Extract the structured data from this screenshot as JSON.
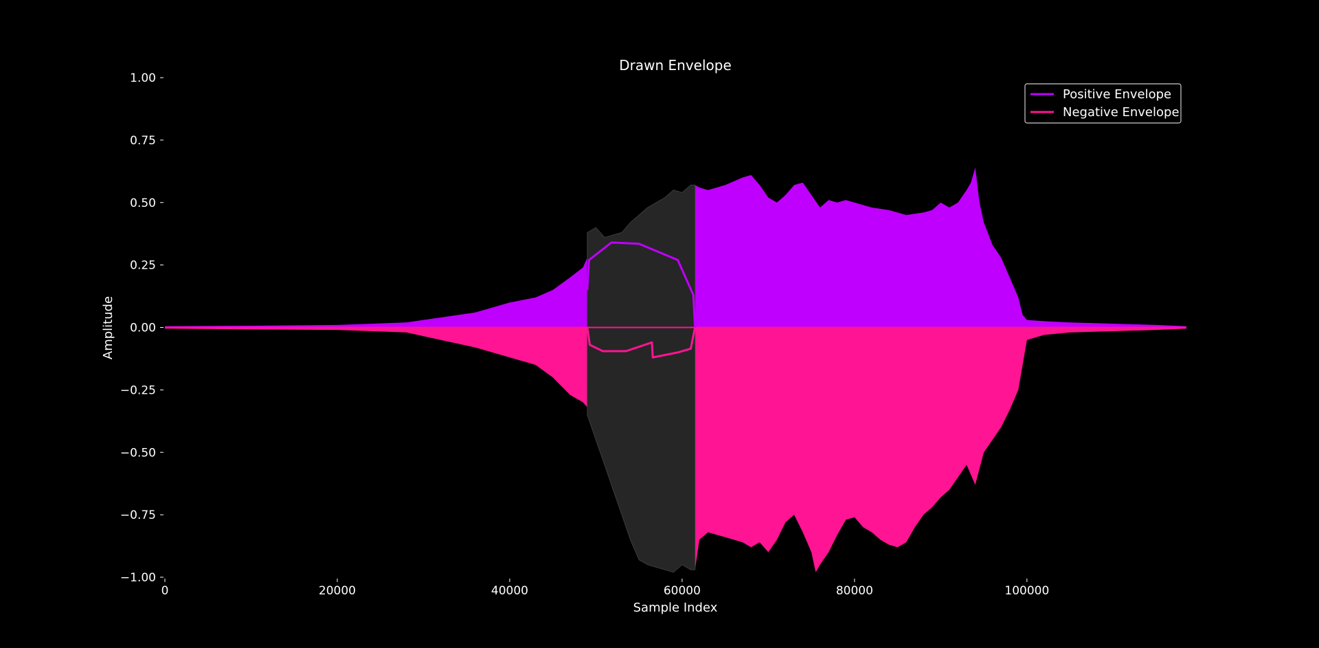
{
  "chart_data": {
    "type": "area",
    "title": "Drawn Envelope",
    "xlabel": "Sample Index",
    "ylabel": "Amplitude",
    "xlim": [
      0,
      118500
    ],
    "ylim": [
      -1.0,
      1.0
    ],
    "xticks": [
      0,
      20000,
      40000,
      60000,
      80000,
      100000
    ],
    "xtick_labels": [
      "0",
      "20000",
      "40000",
      "60000",
      "80000",
      "100000"
    ],
    "yticks": [
      1.0,
      0.75,
      0.5,
      0.25,
      0.0,
      -0.25,
      -0.5,
      -0.75,
      -1.0
    ],
    "ytick_labels": [
      "1.00",
      "0.75",
      "0.50",
      "0.25",
      "0.00",
      "−0.25",
      "−0.50",
      "−0.75",
      "−1.00"
    ],
    "grid": false,
    "legend_position": "top-right",
    "colors": {
      "background": "#000000",
      "positive": "#bf00ff",
      "negative": "#ff1493",
      "selection": "#262626",
      "selection_waveform": "#3c3c3c",
      "text": "#ffffff"
    },
    "selection_region": [
      49000,
      61500
    ],
    "positive_fill": {
      "x": [
        0,
        10000,
        20000,
        28000,
        32000,
        36000,
        40000,
        43000,
        45000,
        47000,
        48500,
        49000,
        61500,
        62000,
        63000,
        65000,
        67000,
        68000,
        69000,
        70000,
        71000,
        72000,
        73000,
        74000,
        75000,
        76000,
        77000,
        78000,
        79000,
        80000,
        82000,
        84000,
        86000,
        88000,
        89000,
        90000,
        91000,
        92000,
        93000,
        93500,
        94000,
        94500,
        95000,
        96000,
        97000,
        98000,
        99000,
        99500,
        100000,
        102000,
        105000,
        110000,
        115000,
        118500
      ],
      "y": [
        0.005,
        0.007,
        0.01,
        0.02,
        0.04,
        0.06,
        0.1,
        0.12,
        0.15,
        0.2,
        0.24,
        0.28,
        0.57,
        0.56,
        0.55,
        0.57,
        0.6,
        0.61,
        0.57,
        0.52,
        0.5,
        0.53,
        0.57,
        0.58,
        0.53,
        0.48,
        0.51,
        0.5,
        0.51,
        0.5,
        0.48,
        0.47,
        0.45,
        0.46,
        0.47,
        0.5,
        0.48,
        0.5,
        0.55,
        0.58,
        0.64,
        0.5,
        0.42,
        0.33,
        0.28,
        0.2,
        0.12,
        0.05,
        0.03,
        0.025,
        0.02,
        0.015,
        0.01,
        0.005
      ]
    },
    "negative_fill": {
      "x": [
        0,
        10000,
        20000,
        28000,
        32000,
        36000,
        40000,
        43000,
        45000,
        47000,
        48500,
        49000,
        61500,
        62000,
        63000,
        65000,
        67000,
        68000,
        69000,
        70000,
        71000,
        72000,
        73000,
        74000,
        75000,
        75500,
        76000,
        77000,
        78000,
        79000,
        80000,
        81000,
        82000,
        83000,
        84000,
        85000,
        86000,
        87000,
        88000,
        89000,
        90000,
        91000,
        92000,
        93000,
        94000,
        95000,
        96000,
        97000,
        98000,
        99000,
        100000,
        102000,
        105000,
        110000,
        115000,
        118500
      ],
      "y": [
        -0.005,
        -0.008,
        -0.01,
        -0.02,
        -0.05,
        -0.08,
        -0.12,
        -0.15,
        -0.2,
        -0.27,
        -0.3,
        -0.32,
        -0.97,
        -0.85,
        -0.82,
        -0.84,
        -0.86,
        -0.88,
        -0.86,
        -0.9,
        -0.85,
        -0.78,
        -0.75,
        -0.82,
        -0.9,
        -0.98,
        -0.95,
        -0.9,
        -0.83,
        -0.77,
        -0.76,
        -0.8,
        -0.82,
        -0.85,
        -0.87,
        -0.88,
        -0.86,
        -0.8,
        -0.75,
        -0.72,
        -0.68,
        -0.65,
        -0.6,
        -0.55,
        -0.63,
        -0.5,
        -0.45,
        -0.4,
        -0.33,
        -0.25,
        -0.05,
        -0.03,
        -0.02,
        -0.015,
        -0.01,
        -0.005
      ]
    },
    "selection_waveform": {
      "x": [
        49000,
        50000,
        51000,
        52000,
        53000,
        54000,
        55000,
        56000,
        57000,
        58000,
        59000,
        60000,
        61000,
        61500
      ],
      "y_max": [
        0.38,
        0.4,
        0.36,
        0.37,
        0.38,
        0.42,
        0.45,
        0.48,
        0.5,
        0.52,
        0.55,
        0.54,
        0.57,
        0.57
      ],
      "y_min": [
        -0.35,
        -0.45,
        -0.55,
        -0.65,
        -0.75,
        -0.85,
        -0.93,
        -0.95,
        -0.96,
        -0.97,
        -0.98,
        -0.95,
        -0.97,
        -0.97
      ]
    },
    "series": [
      {
        "name": "Positive Envelope",
        "color": "#bf00ff",
        "x": [
          49000,
          49200,
          51800,
          55000,
          59500,
          61300,
          61500
        ],
        "y": [
          0.15,
          0.27,
          0.34,
          0.335,
          0.27,
          0.13,
          0.0
        ]
      },
      {
        "name": "Negative Envelope",
        "color": "#ff1493",
        "x": [
          49000,
          49300,
          50800,
          53500,
          56500,
          56600,
          59500,
          61000,
          61500
        ],
        "y": [
          0.0,
          -0.07,
          -0.095,
          -0.095,
          -0.06,
          -0.12,
          -0.1,
          -0.085,
          0.0
        ]
      }
    ]
  }
}
